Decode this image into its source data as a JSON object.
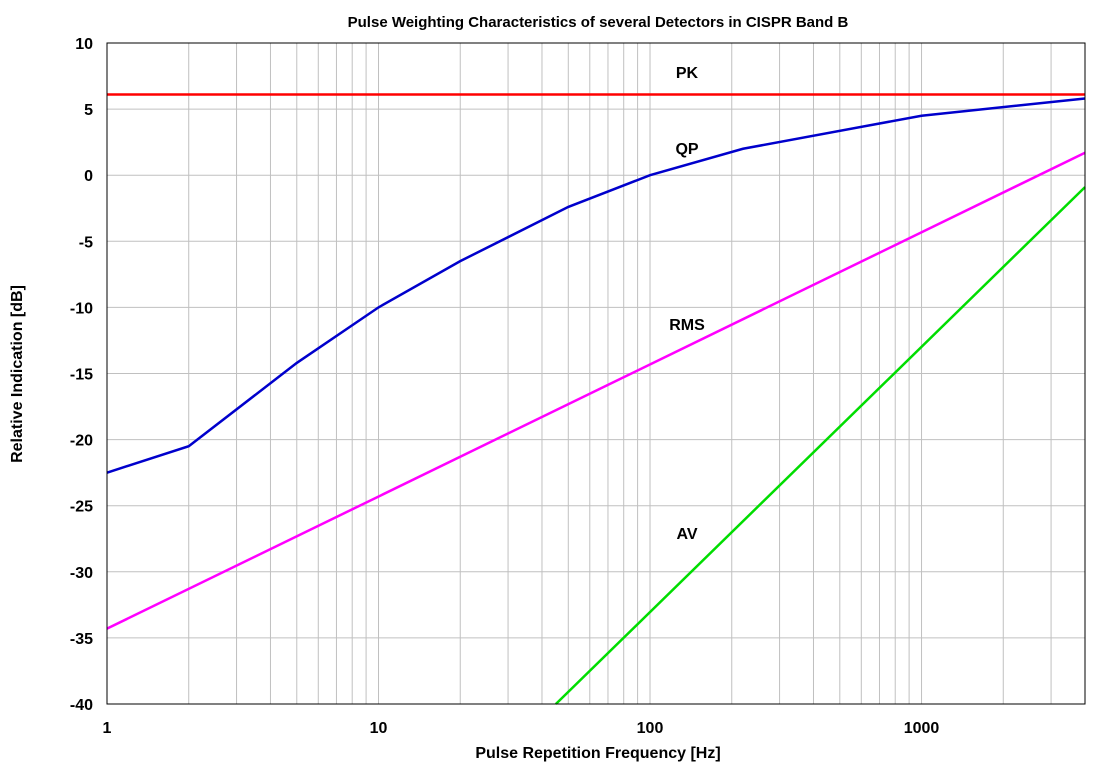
{
  "chart_data": {
    "type": "line",
    "title": "Pulse Weighting Characteristics of several Detectors in CISPR Band B",
    "xlabel": "Pulse Repetition Frequency [Hz]",
    "ylabel": "Relative Indication [dB]",
    "x_scale": "log",
    "xlim": [
      1,
      4000
    ],
    "ylim": [
      -40,
      10
    ],
    "grid": true,
    "x_tick_values": [
      1,
      10,
      100,
      1000
    ],
    "x_tick_labels": [
      "1",
      "10",
      "100",
      "1000"
    ],
    "y_tick_values": [
      10,
      5,
      0,
      -5,
      -10,
      -15,
      -20,
      -25,
      -30,
      -35,
      -40
    ],
    "y_tick_labels": [
      "10",
      "5",
      "0",
      "-5",
      "-10",
      "-15",
      "-20",
      "-25",
      "-30",
      "-35",
      "-40"
    ],
    "series": [
      {
        "name": "PK",
        "color": "#ff0000",
        "x": [
          1,
          4000
        ],
        "y": [
          6.1,
          6.1
        ]
      },
      {
        "name": "QP",
        "color": "#0000cc",
        "x": [
          1,
          2,
          5,
          10,
          20,
          50,
          100,
          220,
          1000,
          4000
        ],
        "y": [
          -22.5,
          -20.5,
          -14.2,
          -10,
          -6.5,
          -2.4,
          0,
          2,
          4.5,
          5.8
        ]
      },
      {
        "name": "RMS",
        "color": "#ff00ff",
        "x": [
          1,
          4000
        ],
        "y": [
          -34.3,
          1.7
        ]
      },
      {
        "name": "AV",
        "color": "#00dd00",
        "x": [
          45,
          4000
        ],
        "y": [
          -40,
          -0.9
        ]
      }
    ]
  }
}
